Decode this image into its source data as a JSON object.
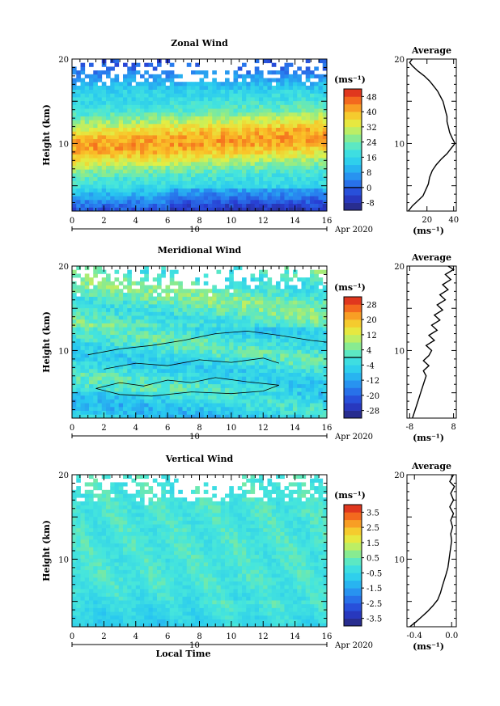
{
  "chart_data": [
    {
      "type": "heatmap",
      "title": "Zonal Wind",
      "xlabel": "",
      "ylabel": "Height (km)",
      "xlim": [
        0,
        16
      ],
      "ylim": [
        2,
        20
      ],
      "x_ticks": [
        "0",
        "2",
        "4",
        "6",
        "8",
        "10",
        "12",
        "14",
        "16"
      ],
      "y_ticks": [
        "10",
        "20"
      ],
      "date_label": "10",
      "month_label": "Apr 2020",
      "colorbar": {
        "unit": "(ms⁻¹)",
        "ticks": [
          48,
          40,
          32,
          24,
          16,
          8,
          0,
          -8
        ],
        "range": [
          -12,
          52
        ],
        "zero_line": true
      },
      "profile": {
        "title": "Average",
        "xlabel": "(ms⁻¹)",
        "x_ticks": [
          "20",
          "40"
        ],
        "xlim": [
          5,
          42
        ],
        "points": [
          [
            6,
            2
          ],
          [
            9,
            2.6
          ],
          [
            13,
            3.2
          ],
          [
            17,
            3.8
          ],
          [
            19,
            4.5
          ],
          [
            21,
            5.2
          ],
          [
            22,
            6
          ],
          [
            24,
            6.8
          ],
          [
            27,
            7.5
          ],
          [
            31,
            8.2
          ],
          [
            35,
            8.8
          ],
          [
            38,
            9.4
          ],
          [
            41,
            10
          ],
          [
            39,
            10.6
          ],
          [
            37,
            11.3
          ],
          [
            36,
            12
          ],
          [
            35,
            12.6
          ],
          [
            35,
            13.2
          ],
          [
            34,
            13.8
          ],
          [
            33,
            14.4
          ],
          [
            32,
            15
          ],
          [
            30,
            15.6
          ],
          [
            28,
            16.2
          ],
          [
            25,
            16.8
          ],
          [
            22,
            17.4
          ],
          [
            18,
            18
          ],
          [
            13,
            18.6
          ],
          [
            9,
            19.2
          ],
          [
            7,
            19.6
          ],
          [
            9,
            20
          ]
        ]
      }
    },
    {
      "type": "heatmap",
      "title": "Meridional Wind",
      "xlabel": "",
      "ylabel": "Height (km)",
      "xlim": [
        0,
        16
      ],
      "ylim": [
        2,
        20
      ],
      "x_ticks": [
        "0",
        "2",
        "4",
        "6",
        "8",
        "10",
        "12",
        "14",
        "16"
      ],
      "y_ticks": [
        "10",
        "20"
      ],
      "date_label": "10",
      "month_label": "Apr 2020",
      "colorbar": {
        "unit": "(ms⁻¹)",
        "ticks": [
          28,
          20,
          12,
          4,
          -4,
          -12,
          -20,
          -28
        ],
        "range": [
          -32,
          32
        ],
        "zero_line": true
      },
      "profile": {
        "title": "Average",
        "xlabel": "(ms⁻¹)",
        "x_ticks": [
          "-8",
          "8"
        ],
        "xlim": [
          -9,
          9
        ],
        "points": [
          [
            -7,
            2
          ],
          [
            -6,
            3
          ],
          [
            -5,
            4
          ],
          [
            -4,
            5
          ],
          [
            -3,
            6
          ],
          [
            -2,
            7
          ],
          [
            -3,
            7.6
          ],
          [
            -1,
            8.2
          ],
          [
            -3,
            8.8
          ],
          [
            -1,
            9.4
          ],
          [
            0,
            10
          ],
          [
            -2,
            10.6
          ],
          [
            1,
            11.2
          ],
          [
            -1,
            11.8
          ],
          [
            2,
            12.4
          ],
          [
            0,
            13
          ],
          [
            3,
            13.6
          ],
          [
            1,
            14.2
          ],
          [
            4,
            14.8
          ],
          [
            2,
            15.4
          ],
          [
            5,
            16
          ],
          [
            3,
            16.6
          ],
          [
            6,
            17.2
          ],
          [
            4,
            17.8
          ],
          [
            7,
            18.4
          ],
          [
            5,
            19
          ],
          [
            8,
            19.6
          ],
          [
            6,
            20
          ]
        ]
      }
    },
    {
      "type": "heatmap",
      "title": "Vertical Wind",
      "xlabel": "Local Time",
      "ylabel": "Height (km)",
      "xlim": [
        0,
        16
      ],
      "ylim": [
        2,
        20
      ],
      "x_ticks": [
        "0",
        "2",
        "4",
        "6",
        "8",
        "10",
        "12",
        "14",
        "16"
      ],
      "y_ticks": [
        "10",
        "20"
      ],
      "date_label": "10",
      "month_label": "Apr 2020",
      "colorbar": {
        "unit": "(ms⁻¹)",
        "ticks": [
          3.5,
          2.5,
          1.5,
          0.5,
          -0.5,
          -1.5,
          -2.5,
          -3.5
        ],
        "range": [
          -4,
          4
        ],
        "zero_line": false
      },
      "profile": {
        "title": "Average",
        "xlabel": "(ms⁻¹)",
        "x_ticks": [
          "-0.4",
          "0.0"
        ],
        "xlim": [
          -0.48,
          0.05
        ],
        "points": [
          [
            -0.45,
            2
          ],
          [
            -0.38,
            2.6
          ],
          [
            -0.32,
            3.2
          ],
          [
            -0.26,
            3.8
          ],
          [
            -0.2,
            4.5
          ],
          [
            -0.15,
            5.2
          ],
          [
            -0.12,
            6
          ],
          [
            -0.1,
            6.8
          ],
          [
            -0.08,
            7.5
          ],
          [
            -0.06,
            8.2
          ],
          [
            -0.04,
            9
          ],
          [
            -0.03,
            9.8
          ],
          [
            -0.02,
            10.6
          ],
          [
            -0.01,
            11.4
          ],
          [
            0.0,
            12.2
          ],
          [
            -0.01,
            13
          ],
          [
            0.01,
            13.8
          ],
          [
            -0.01,
            14.6
          ],
          [
            0.02,
            15.4
          ],
          [
            -0.02,
            16.2
          ],
          [
            0.02,
            17
          ],
          [
            -0.01,
            17.8
          ],
          [
            0.03,
            18.6
          ],
          [
            -0.02,
            19.2
          ],
          [
            0.02,
            20
          ]
        ]
      }
    }
  ]
}
